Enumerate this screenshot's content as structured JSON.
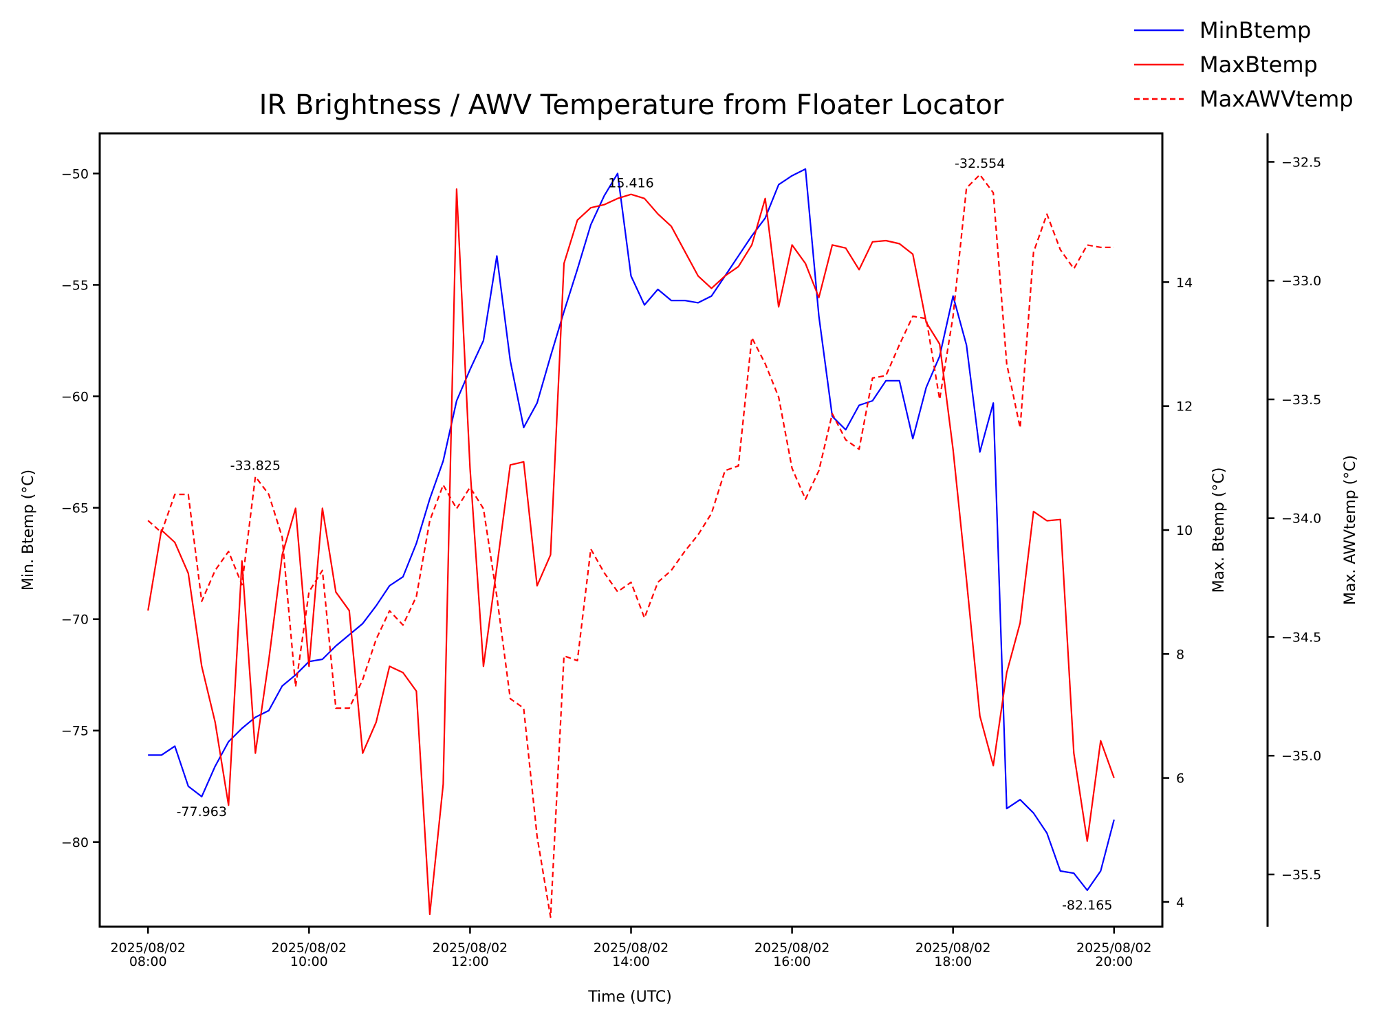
{
  "chart_data": {
    "type": "line",
    "title": "IR Brightness / AWV Temperature from Floater Locator",
    "xlabel": "Time (UTC)",
    "ylabel_left": "Min. Btemp (°C)",
    "ylabel_right": "Max. Btemp (°C)",
    "ylabel_right2": "Max. AWVtemp (°C)",
    "x_ticks": [
      {
        "t": 0,
        "line1": "2025/08/02",
        "line2": "08:00"
      },
      {
        "t": 120,
        "line1": "2025/08/02",
        "line2": "10:00"
      },
      {
        "t": 240,
        "line1": "2025/08/02",
        "line2": "12:00"
      },
      {
        "t": 360,
        "line1": "2025/08/02",
        "line2": "14:00"
      },
      {
        "t": 480,
        "line1": "2025/08/02",
        "line2": "16:00"
      },
      {
        "t": 600,
        "line1": "2025/08/02",
        "line2": "18:00"
      },
      {
        "t": 720,
        "line1": "2025/08/02",
        "line2": "20:00"
      }
    ],
    "xlim": [
      "2025/08/02 07:24",
      "2025/08/02 20:36"
    ],
    "y_left": {
      "lim": [
        -83.8,
        -48.2
      ],
      "ticks": [
        -80,
        -75,
        -70,
        -65,
        -60,
        -55,
        -50
      ],
      "labels": [
        "−80",
        "−75",
        "−70",
        "−65",
        "−60",
        "−55",
        "−50"
      ]
    },
    "y_right": {
      "lim": [
        3.6,
        16.4
      ],
      "ticks": [
        4,
        6,
        8,
        10,
        12,
        14
      ],
      "labels": [
        "4",
        "6",
        "8",
        "10",
        "12",
        "14"
      ]
    },
    "y_right2": {
      "lim": [
        -35.72,
        -32.38
      ],
      "ticks": [
        -35.5,
        -35.0,
        -34.5,
        -34.0,
        -33.5,
        -33.0,
        -32.5
      ],
      "labels": [
        "−35.5",
        "−35.0",
        "−34.5",
        "−34.0",
        "−33.5",
        "−33.0",
        "−32.5"
      ]
    },
    "legend": {
      "placement": "top-right, outside plot"
    },
    "series": [
      {
        "name": "MinBtemp",
        "axis": "left",
        "color": "#0000ff",
        "dash": "solid",
        "points": [
          [
            0,
            -76.1
          ],
          [
            10,
            -76.1
          ],
          [
            20,
            -75.7
          ],
          [
            30,
            -77.5
          ],
          [
            40,
            -77.963
          ],
          [
            50,
            -76.6
          ],
          [
            60,
            -75.5
          ],
          [
            70,
            -74.9
          ],
          [
            80,
            -74.4
          ],
          [
            90,
            -74.1
          ],
          [
            100,
            -73.0
          ],
          [
            110,
            -72.5
          ],
          [
            120,
            -71.9
          ],
          [
            130,
            -71.8
          ],
          [
            140,
            -71.2
          ],
          [
            150,
            -70.7
          ],
          [
            160,
            -70.2
          ],
          [
            170,
            -69.4
          ],
          [
            180,
            -68.5
          ],
          [
            190,
            -68.1
          ],
          [
            200,
            -66.6
          ],
          [
            210,
            -64.6
          ],
          [
            220,
            -62.9
          ],
          [
            230,
            -60.2
          ],
          [
            240,
            -58.8
          ],
          [
            250,
            -57.5
          ],
          [
            260,
            -53.7
          ],
          [
            270,
            -58.4
          ],
          [
            280,
            -61.4
          ],
          [
            290,
            -60.3
          ],
          [
            300,
            -58.2
          ],
          [
            310,
            -56.2
          ],
          [
            320,
            -54.3
          ],
          [
            330,
            -52.3
          ],
          [
            340,
            -51.0
          ],
          [
            350,
            -50.0
          ],
          [
            360,
            -54.6
          ],
          [
            370,
            -55.9
          ],
          [
            380,
            -55.2
          ],
          [
            390,
            -55.7
          ],
          [
            400,
            -55.7
          ],
          [
            410,
            -55.8
          ],
          [
            420,
            -55.5
          ],
          [
            430,
            -54.6
          ],
          [
            440,
            -53.7
          ],
          [
            450,
            -52.8
          ],
          [
            460,
            -52.0
          ],
          [
            470,
            -50.5
          ],
          [
            480,
            -50.1
          ],
          [
            490,
            -49.8
          ],
          [
            500,
            -56.4
          ],
          [
            510,
            -60.9
          ],
          [
            520,
            -61.5
          ],
          [
            530,
            -60.4
          ],
          [
            540,
            -60.2
          ],
          [
            550,
            -59.3
          ],
          [
            560,
            -59.3
          ],
          [
            570,
            -61.9
          ],
          [
            580,
            -59.6
          ],
          [
            590,
            -58.2
          ],
          [
            600,
            -55.5
          ],
          [
            610,
            -57.7
          ],
          [
            620,
            -62.5
          ],
          [
            630,
            -60.3
          ],
          [
            640,
            -78.5
          ],
          [
            650,
            -78.1
          ],
          [
            660,
            -78.7
          ],
          [
            670,
            -79.6
          ],
          [
            680,
            -81.3
          ],
          [
            690,
            -81.4
          ],
          [
            700,
            -82.165
          ],
          [
            710,
            -81.3
          ],
          [
            720,
            -79.0
          ]
        ]
      },
      {
        "name": "MaxBtemp",
        "axis": "right",
        "color": "#ff0000",
        "dash": "solid",
        "points": [
          [
            0,
            8.7
          ],
          [
            10,
            10.0
          ],
          [
            20,
            9.8
          ],
          [
            30,
            9.3
          ],
          [
            40,
            7.8
          ],
          [
            50,
            6.9
          ],
          [
            60,
            5.56
          ],
          [
            70,
            9.5
          ],
          [
            80,
            6.4
          ],
          [
            90,
            7.9
          ],
          [
            100,
            9.6
          ],
          [
            110,
            10.35
          ],
          [
            120,
            7.8
          ],
          [
            130,
            10.35
          ],
          [
            140,
            9.0
          ],
          [
            150,
            8.7
          ],
          [
            160,
            6.4
          ],
          [
            170,
            6.9
          ],
          [
            180,
            7.8
          ],
          [
            190,
            7.7
          ],
          [
            200,
            7.4
          ],
          [
            210,
            3.8
          ],
          [
            220,
            5.9
          ],
          [
            230,
            15.5
          ],
          [
            240,
            11.0
          ],
          [
            250,
            7.8
          ],
          [
            260,
            9.4
          ],
          [
            270,
            11.05
          ],
          [
            280,
            11.1
          ],
          [
            290,
            9.1
          ],
          [
            300,
            9.6
          ],
          [
            310,
            14.3
          ],
          [
            320,
            15.0
          ],
          [
            330,
            15.2
          ],
          [
            340,
            15.25
          ],
          [
            350,
            15.35
          ],
          [
            360,
            15.416
          ],
          [
            370,
            15.35
          ],
          [
            380,
            15.1
          ],
          [
            390,
            14.9
          ],
          [
            400,
            14.5
          ],
          [
            410,
            14.1
          ],
          [
            420,
            13.9
          ],
          [
            430,
            14.1
          ],
          [
            440,
            14.25
          ],
          [
            450,
            14.6
          ],
          [
            460,
            15.35
          ],
          [
            470,
            13.6
          ],
          [
            480,
            14.6
          ],
          [
            490,
            14.3
          ],
          [
            500,
            13.75
          ],
          [
            510,
            14.6
          ],
          [
            520,
            14.55
          ],
          [
            530,
            14.2
          ],
          [
            540,
            14.65
          ],
          [
            550,
            14.67
          ],
          [
            560,
            14.62
          ],
          [
            570,
            14.45
          ],
          [
            580,
            13.35
          ],
          [
            590,
            13.0
          ],
          [
            600,
            11.3
          ],
          [
            610,
            9.2
          ],
          [
            620,
            7.0
          ],
          [
            630,
            6.2
          ],
          [
            640,
            7.7
          ],
          [
            650,
            8.5
          ],
          [
            660,
            10.3
          ],
          [
            670,
            10.15
          ],
          [
            680,
            10.17
          ],
          [
            690,
            6.4
          ],
          [
            700,
            4.98
          ],
          [
            710,
            6.6
          ],
          [
            720,
            6.0
          ]
        ]
      },
      {
        "name": "MaxAWVtemp",
        "axis": "right2",
        "color": "#ff0000",
        "dash": "dashed",
        "points": [
          [
            0,
            -34.01
          ],
          [
            10,
            -34.06
          ],
          [
            20,
            -33.9
          ],
          [
            30,
            -33.9
          ],
          [
            40,
            -34.35
          ],
          [
            50,
            -34.22
          ],
          [
            60,
            -34.14
          ],
          [
            70,
            -34.28
          ],
          [
            80,
            -33.825
          ],
          [
            90,
            -33.9
          ],
          [
            100,
            -34.08
          ],
          [
            110,
            -34.71
          ],
          [
            120,
            -34.31
          ],
          [
            130,
            -34.22
          ],
          [
            140,
            -34.8
          ],
          [
            150,
            -34.8
          ],
          [
            160,
            -34.68
          ],
          [
            170,
            -34.51
          ],
          [
            180,
            -34.39
          ],
          [
            190,
            -34.45
          ],
          [
            200,
            -34.33
          ],
          [
            210,
            -34.01
          ],
          [
            220,
            -33.86
          ],
          [
            230,
            -33.96
          ],
          [
            240,
            -33.87
          ],
          [
            250,
            -33.96
          ],
          [
            260,
            -34.33
          ],
          [
            270,
            -34.76
          ],
          [
            280,
            -34.8
          ],
          [
            290,
            -35.34
          ],
          [
            300,
            -35.68
          ],
          [
            310,
            -34.58
          ],
          [
            320,
            -34.6
          ],
          [
            330,
            -34.13
          ],
          [
            340,
            -34.23
          ],
          [
            350,
            -34.31
          ],
          [
            360,
            -34.27
          ],
          [
            370,
            -34.42
          ],
          [
            380,
            -34.27
          ],
          [
            390,
            -34.22
          ],
          [
            400,
            -34.14
          ],
          [
            410,
            -34.07
          ],
          [
            420,
            -33.98
          ],
          [
            430,
            -33.8
          ],
          [
            440,
            -33.78
          ],
          [
            450,
            -33.24
          ],
          [
            460,
            -33.35
          ],
          [
            470,
            -33.49
          ],
          [
            480,
            -33.79
          ],
          [
            490,
            -33.92
          ],
          [
            500,
            -33.8
          ],
          [
            510,
            -33.56
          ],
          [
            520,
            -33.67
          ],
          [
            530,
            -33.71
          ],
          [
            540,
            -33.41
          ],
          [
            550,
            -33.4
          ],
          [
            560,
            -33.27
          ],
          [
            570,
            -33.15
          ],
          [
            580,
            -33.16
          ],
          [
            590,
            -33.5
          ],
          [
            600,
            -33.15
          ],
          [
            610,
            -32.61
          ],
          [
            620,
            -32.554
          ],
          [
            630,
            -32.63
          ],
          [
            640,
            -33.35
          ],
          [
            650,
            -33.62
          ],
          [
            660,
            -32.88
          ],
          [
            670,
            -32.72
          ],
          [
            680,
            -32.87
          ],
          [
            690,
            -32.95
          ],
          [
            700,
            -32.85
          ],
          [
            710,
            -32.86
          ],
          [
            720,
            -32.86
          ]
        ]
      }
    ],
    "annotations": [
      {
        "text": "-77.963",
        "series": "MinBtemp",
        "t": 40,
        "pos": "below"
      },
      {
        "text": "-82.165",
        "series": "MinBtemp",
        "t": 700,
        "pos": "below"
      },
      {
        "text": "15.416",
        "series": "MaxBtemp",
        "t": 360,
        "pos": "above"
      },
      {
        "text": "-33.825",
        "series": "MaxAWVtemp",
        "t": 80,
        "pos": "above"
      },
      {
        "text": "-32.554",
        "series": "MaxAWVtemp",
        "t": 620,
        "pos": "above"
      }
    ]
  }
}
